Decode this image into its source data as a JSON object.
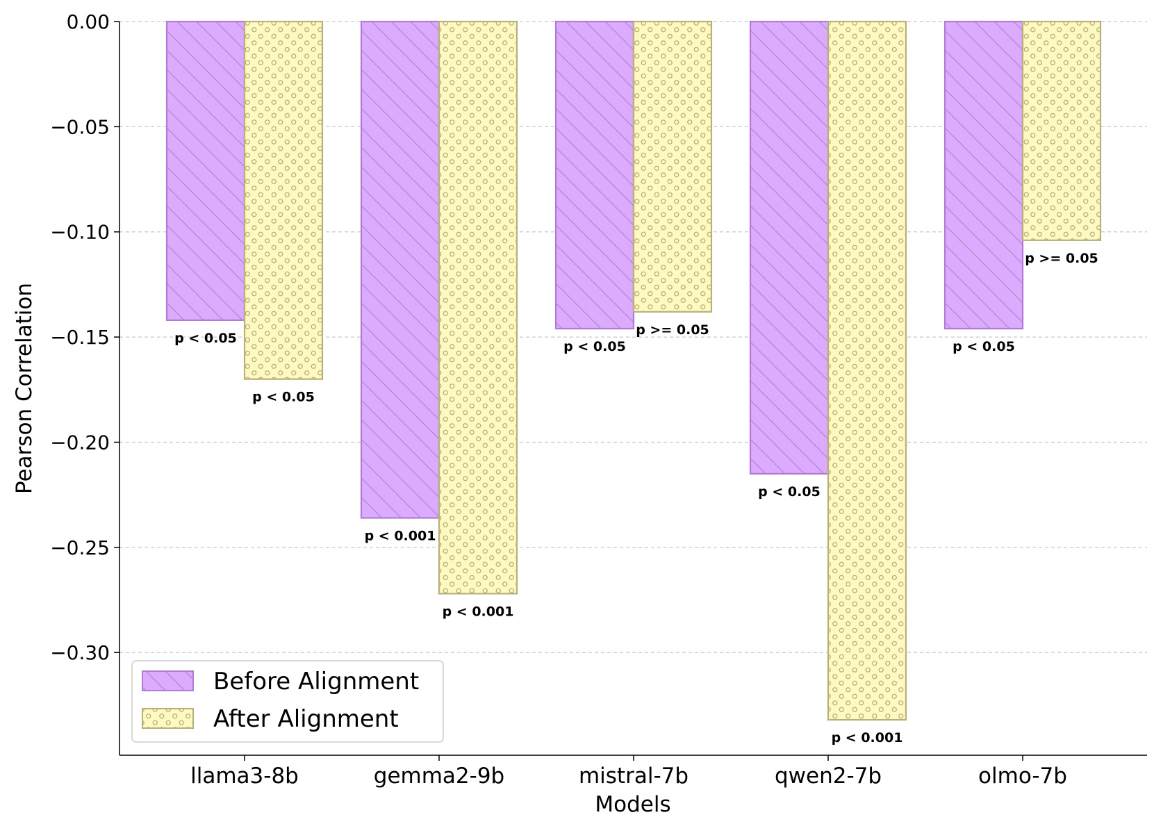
{
  "chart_data": {
    "type": "bar",
    "title": "",
    "xlabel": "Models",
    "ylabel": "Pearson Correlation",
    "ylim": [
      -0.349,
      0.0
    ],
    "yticks": [
      0.0,
      -0.05,
      -0.1,
      -0.15,
      -0.2,
      -0.25,
      -0.3
    ],
    "ytick_labels": [
      "0.00",
      "−0.05",
      "−0.10",
      "−0.15",
      "−0.20",
      "−0.25",
      "−0.30"
    ],
    "grid": "y-dashed",
    "legend_position": "bottom-left",
    "categories": [
      "llama3-8b",
      "gemma2-9b",
      "mistral-7b",
      "qwen2-7b",
      "olmo-7b"
    ],
    "series": [
      {
        "name": "Before Alignment",
        "color": "#dcaaff",
        "edge": "#b07ad6",
        "hatch": "diagonal",
        "values": [
          -0.142,
          -0.236,
          -0.146,
          -0.215,
          -0.146
        ],
        "pvalues": [
          "p < 0.05",
          "p < 0.001",
          "p < 0.05",
          "p < 0.05",
          "p < 0.05"
        ]
      },
      {
        "name": "After Alignment",
        "color": "#fdf9c0",
        "edge": "#b8b07a",
        "hatch": "circles",
        "values": [
          -0.17,
          -0.272,
          -0.138,
          -0.332,
          -0.104
        ],
        "pvalues": [
          "p < 0.05",
          "p < 0.001",
          "p >= 0.05",
          "p < 0.001",
          "p >= 0.05"
        ]
      }
    ]
  }
}
